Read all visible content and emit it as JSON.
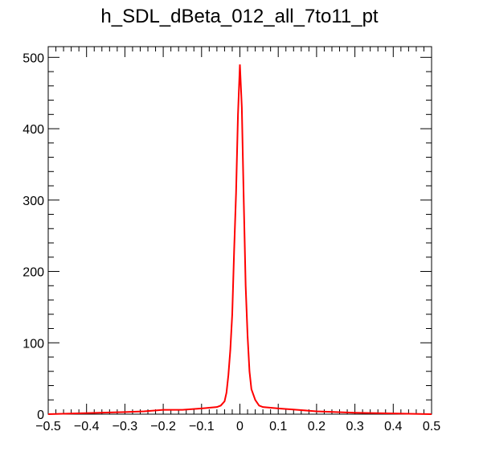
{
  "chart_data": {
    "type": "line",
    "title": "h_SDL_dBeta_012_all_7to11_pt",
    "xlabel": "",
    "ylabel": "",
    "xlim": [
      -0.5,
      0.5
    ],
    "ylim": [
      0,
      515
    ],
    "x_ticks": [
      -0.5,
      -0.4,
      -0.3,
      -0.2,
      -0.1,
      0,
      0.1,
      0.2,
      0.3,
      0.4,
      0.5
    ],
    "x_tick_labels": [
      "−0.5",
      "−0.4",
      "−0.3",
      "−0.2",
      "−0.1",
      "0",
      "0.1",
      "0.2",
      "0.3",
      "0.4",
      "0.5"
    ],
    "y_ticks": [
      0,
      100,
      200,
      300,
      400,
      500
    ],
    "y_tick_labels": [
      "0",
      "100",
      "200",
      "300",
      "400",
      "500"
    ],
    "grid": false,
    "legend": "none",
    "series_color": "#ff0000",
    "series": [
      {
        "x": [
          -0.3,
          -0.25,
          -0.2,
          -0.15,
          -0.1,
          -0.08,
          -0.06,
          -0.05,
          -0.04,
          -0.035,
          -0.03,
          -0.025,
          -0.02,
          -0.015,
          -0.01,
          -0.005,
          0,
          0.005,
          0.01,
          0.015,
          0.02,
          0.025,
          0.03,
          0.04,
          0.05,
          0.06,
          0.08,
          0.1,
          0.15,
          0.2,
          0.25,
          0.3,
          0.4,
          0.5
        ],
        "y": [
          3,
          4,
          6,
          6,
          8,
          9,
          10,
          12,
          18,
          30,
          55,
          90,
          140,
          230,
          310,
          420,
          490,
          430,
          300,
          180,
          110,
          60,
          35,
          20,
          12,
          10,
          9,
          8,
          6,
          4,
          3,
          2,
          1,
          0
        ]
      }
    ]
  }
}
